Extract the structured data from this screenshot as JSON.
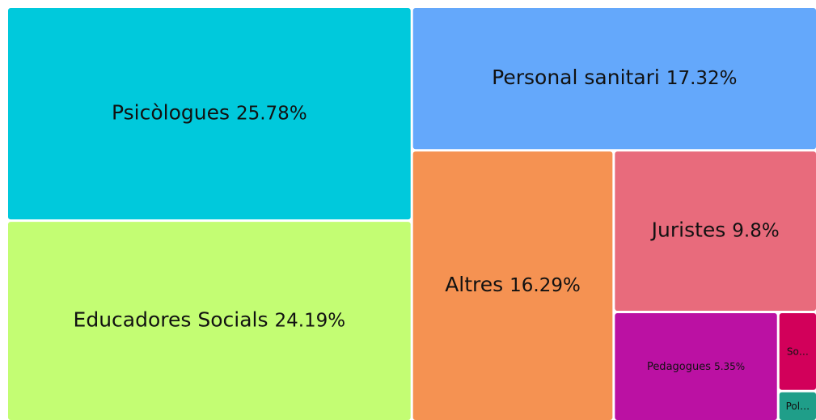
{
  "chart_data": {
    "type": "treemap",
    "categories": [
      "Psicòlogues",
      "Educadores Socials",
      "Personal sanitari",
      "Altres",
      "Juristes",
      "Pedagogues",
      "So…",
      "Pol…"
    ],
    "values": [
      25.78,
      24.19,
      17.32,
      16.29,
      9.8,
      5.35,
      0.92,
      0.35
    ],
    "value_labels": [
      "25.78%",
      "24.19%",
      "17.32%",
      "16.29%",
      "9.8%",
      "5.35%",
      null,
      null
    ],
    "colors": [
      "#00c9dc",
      "#c3fd73",
      "#64a8fb",
      "#f59252",
      "#e86b7c",
      "#bb11a3",
      "#d2005a",
      "#1f9e89"
    ]
  }
}
